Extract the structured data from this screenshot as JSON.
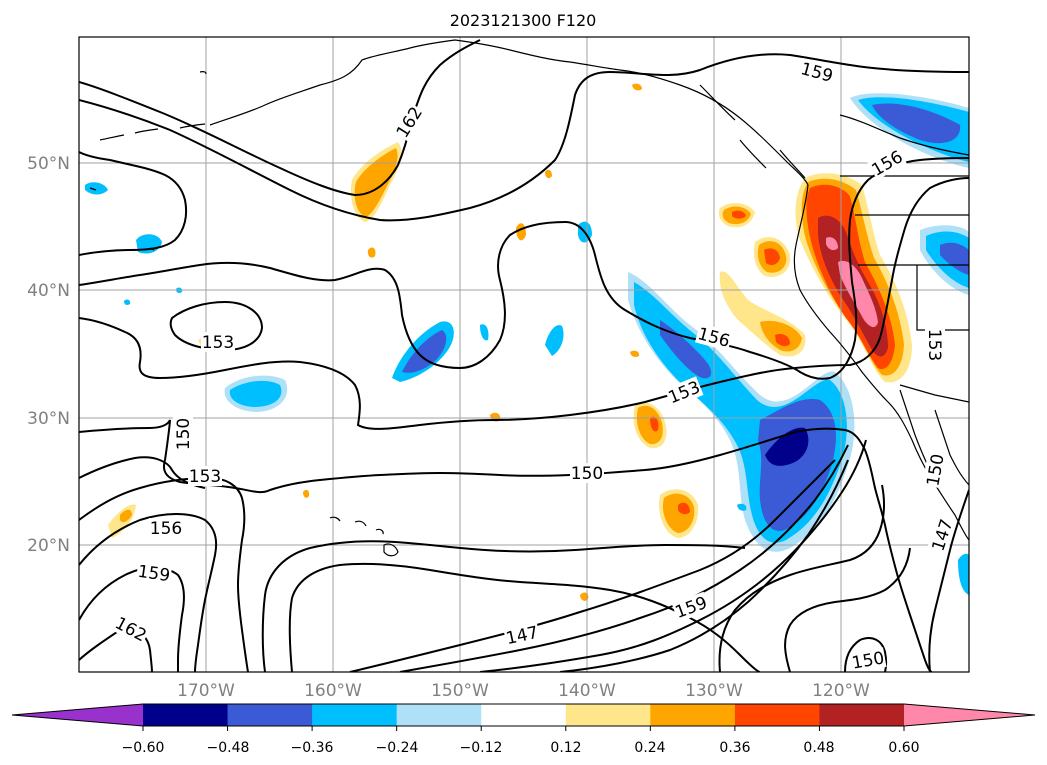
{
  "figure": {
    "title": "2023121300 F120"
  },
  "map": {
    "projection": "lat-lon",
    "lon_range": [
      -180,
      -110
    ],
    "lat_range": [
      10,
      60
    ],
    "gridlines": true,
    "lat_labels": [
      "50°N",
      "40°N",
      "30°N",
      "20°N"
    ],
    "lon_labels": [
      "170°W",
      "160°W",
      "150°W",
      "140°W",
      "130°W",
      "120°W"
    ],
    "contour_labels": [
      "162",
      "159",
      "156",
      "153",
      "150",
      "147"
    ]
  },
  "colorbar": {
    "orientation": "horizontal",
    "extend": "both",
    "tick_labels": [
      "−0.60",
      "−0.48",
      "−0.36",
      "−0.24",
      "−0.12",
      "0.12",
      "0.24",
      "0.36",
      "0.48",
      "0.60"
    ],
    "colors": [
      "#9932cc",
      "#00008b",
      "#3b5bd6",
      "#00bfff",
      "#aee0f7",
      "#ffffff",
      "#ffe68a",
      "#ffa500",
      "#ff4500",
      "#b22222",
      "#ff88aa"
    ]
  }
}
